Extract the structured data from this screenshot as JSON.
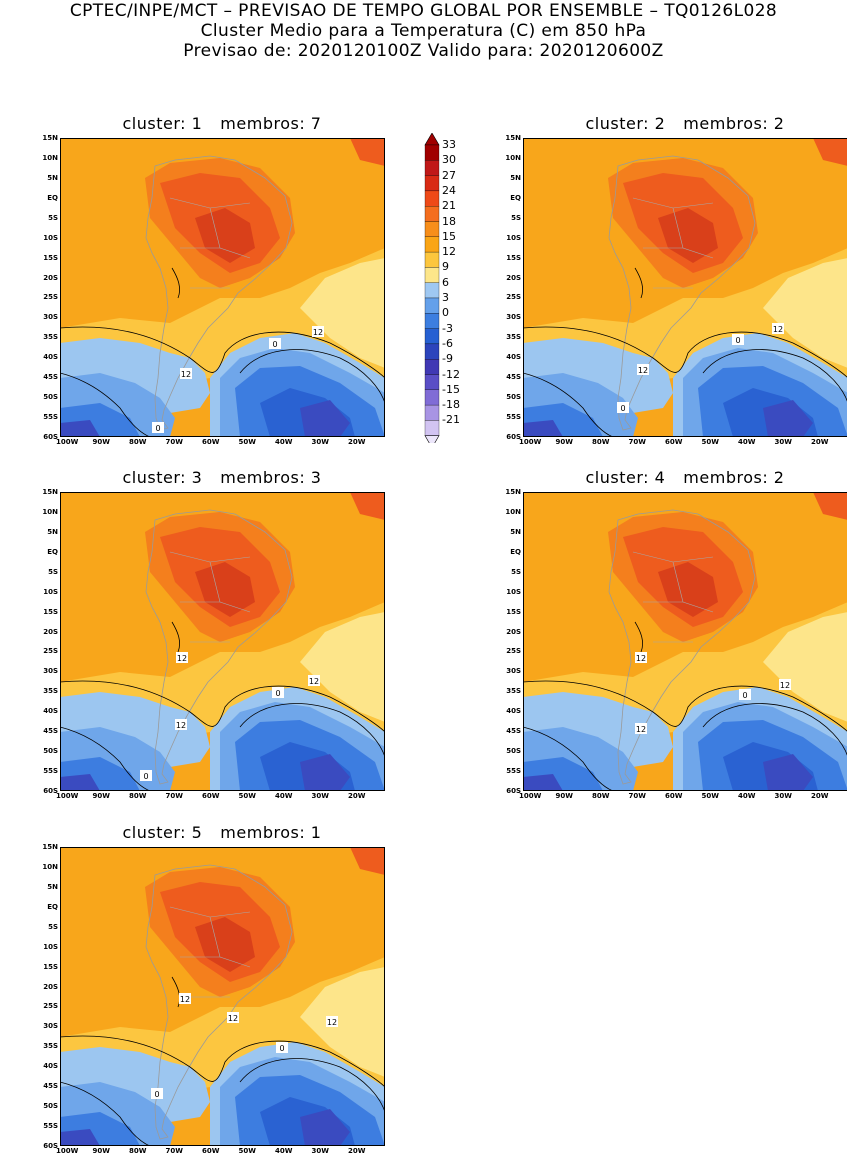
{
  "header": {
    "line1": "CPTEC/INPE/MCT – PREVISAO DE TEMPO GLOBAL POR ENSEMBLE – TQ0126L028",
    "line2": "Cluster Medio para a Temperatura (C) em 850 hPa",
    "line3": "Previsao de: 2020120100Z   Valido para: 2020120600Z"
  },
  "lat_labels": [
    "15N",
    "10N",
    "5N",
    "EQ",
    "5S",
    "10S",
    "15S",
    "20S",
    "25S",
    "30S",
    "35S",
    "40S",
    "45S",
    "50S",
    "55S",
    "60S"
  ],
  "lon_labels": [
    "100W",
    "90W",
    "80W",
    "70W",
    "60W",
    "50W",
    "40W",
    "30W",
    "20W"
  ],
  "panels": [
    {
      "cluster": "cluster: 1",
      "membros": "membros: 7",
      "contour_labels": [
        "12",
        "12",
        "0",
        "0"
      ]
    },
    {
      "cluster": "cluster: 2",
      "membros": "membros: 2",
      "contour_labels": [
        "12",
        "12",
        "0",
        "0"
      ]
    },
    {
      "cluster": "cluster: 3",
      "membros": "membros: 3",
      "contour_labels": [
        "12",
        "12",
        "12",
        "0",
        "0"
      ]
    },
    {
      "cluster": "cluster: 4",
      "membros": "membros: 2",
      "contour_labels": [
        "12",
        "12",
        "12",
        "0"
      ]
    },
    {
      "cluster": "cluster: 5",
      "membros": "membros: 1",
      "contour_labels": [
        "12",
        "12",
        "12",
        "0",
        "0"
      ]
    }
  ],
  "colorbar": {
    "labels": [
      "33",
      "30",
      "27",
      "24",
      "21",
      "18",
      "15",
      "12",
      "9",
      "6",
      "3",
      "0",
      "-3",
      "-6",
      "-9",
      "-12",
      "-15",
      "-18",
      "-21"
    ],
    "colors": [
      "#a00000",
      "#c01818",
      "#d82a14",
      "#ee4a18",
      "#f46e1e",
      "#f78e1a",
      "#faa516",
      "#fcc63e",
      "#fde68a",
      "#9fc8f2",
      "#64a0ea",
      "#3c7ee0",
      "#2660d2",
      "#2c44bc",
      "#4038b4",
      "#5a4ec6",
      "#806cd6",
      "#a894e4",
      "#d2c4f2"
    ]
  }
}
